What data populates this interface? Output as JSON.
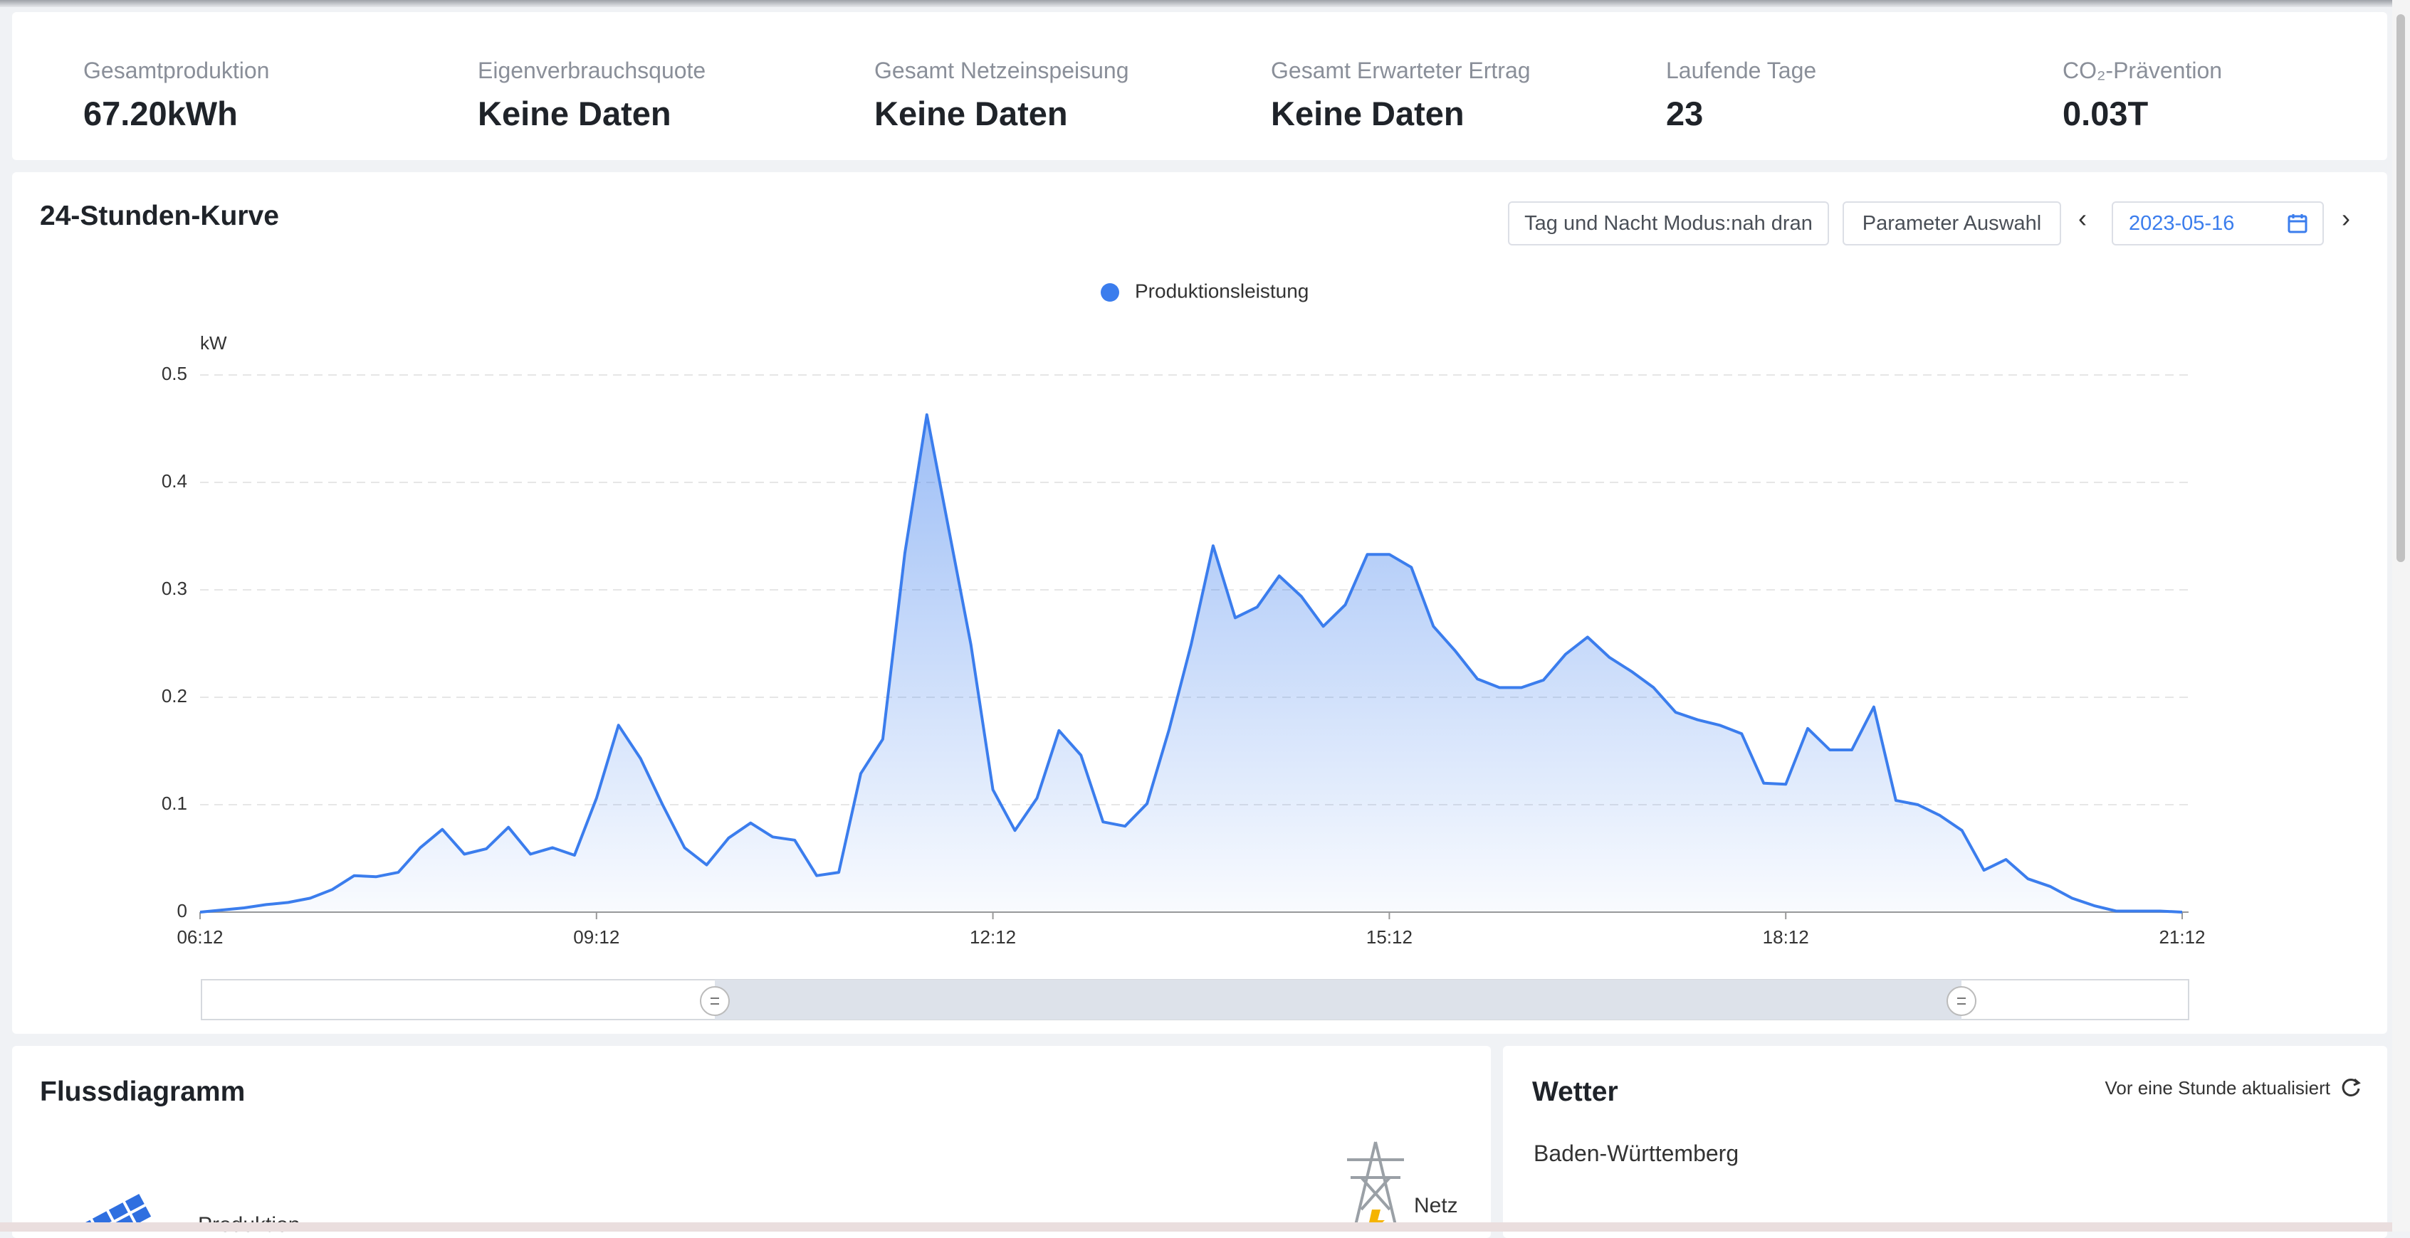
{
  "stats": [
    {
      "label": "Gesamtproduktion",
      "value": "67.20kWh"
    },
    {
      "label": "Eigenverbrauchsquote",
      "value": "Keine Daten"
    },
    {
      "label": "Gesamt Netzeinspeisung",
      "value": "Keine Daten"
    },
    {
      "label": "Gesamt Erwarteter Ertrag",
      "value": "Keine Daten"
    },
    {
      "label": "Laufende Tage",
      "value": "23"
    },
    {
      "label": "CO₂-Prävention",
      "value": "0.03T"
    }
  ],
  "chart_panel": {
    "title": "24-Stunden-Kurve",
    "buttons": [
      "Tag und Nacht Modus:nah dran",
      "Parameter Auswahl"
    ],
    "date": "2023-05-16"
  },
  "chart_data": {
    "type": "area",
    "y_label": "kW",
    "x": [
      "06:12",
      "06:22",
      "06:32",
      "06:42",
      "06:52",
      "07:02",
      "07:12",
      "07:22",
      "07:32",
      "07:42",
      "07:52",
      "08:02",
      "08:12",
      "08:22",
      "08:32",
      "08:42",
      "08:52",
      "09:02",
      "09:12",
      "09:22",
      "09:32",
      "09:42",
      "09:52",
      "10:02",
      "10:12",
      "10:22",
      "10:32",
      "10:42",
      "10:52",
      "11:02",
      "11:12",
      "11:22",
      "11:32",
      "11:42",
      "11:52",
      "12:02",
      "12:12",
      "12:22",
      "12:32",
      "12:42",
      "12:52",
      "13:02",
      "13:12",
      "13:22",
      "13:32",
      "13:42",
      "13:52",
      "14:02",
      "14:12",
      "14:22",
      "14:32",
      "14:42",
      "14:52",
      "15:02",
      "15:12",
      "15:22",
      "15:32",
      "15:42",
      "15:52",
      "16:02",
      "16:12",
      "16:22",
      "16:32",
      "16:42",
      "16:52",
      "17:02",
      "17:12",
      "17:22",
      "17:32",
      "17:42",
      "17:52",
      "18:02",
      "18:12",
      "18:22",
      "18:32",
      "18:42",
      "18:52",
      "19:02",
      "19:12",
      "19:22",
      "19:32",
      "19:42",
      "19:52",
      "20:02",
      "20:12",
      "20:22",
      "20:32",
      "20:42",
      "20:52",
      "21:02",
      "21:12"
    ],
    "series": [
      {
        "name": "Produktionsleistung",
        "color": "#3b7ded",
        "values": [
          0,
          0.002,
          0.004,
          0.007,
          0.009,
          0.013,
          0.021,
          0.034,
          0.033,
          0.037,
          0.06,
          0.077,
          0.054,
          0.059,
          0.079,
          0.054,
          0.06,
          0.053,
          0.106,
          0.174,
          0.143,
          0.1,
          0.06,
          0.044,
          0.069,
          0.083,
          0.07,
          0.067,
          0.034,
          0.037,
          0.129,
          0.161,
          0.334,
          0.463,
          0.356,
          0.249,
          0.114,
          0.076,
          0.106,
          0.169,
          0.146,
          0.084,
          0.08,
          0.101,
          0.17,
          0.249,
          0.341,
          0.274,
          0.284,
          0.313,
          0.294,
          0.266,
          0.286,
          0.333,
          0.333,
          0.321,
          0.266,
          0.243,
          0.217,
          0.209,
          0.209,
          0.216,
          0.24,
          0.256,
          0.237,
          0.224,
          0.209,
          0.186,
          0.179,
          0.174,
          0.166,
          0.12,
          0.119,
          0.171,
          0.151,
          0.151,
          0.191,
          0.104,
          0.1,
          0.09,
          0.076,
          0.039,
          0.049,
          0.031,
          0.024,
          0.013,
          0.006,
          0.001,
          0.001,
          0.001,
          0
        ]
      }
    ],
    "ylim": [
      0,
      0.5
    ],
    "yticks": [
      0,
      0.1,
      0.2,
      0.3,
      0.4,
      0.5
    ],
    "xticks": [
      "06:12",
      "09:12",
      "12:12",
      "15:12",
      "18:12",
      "21:12"
    ],
    "grid": true,
    "legend": "top"
  },
  "flow": {
    "title": "Flussdiagramm",
    "labels": [
      "Produktion",
      "Netz"
    ]
  },
  "weather": {
    "title": "Wetter",
    "updated": "Vor eine Stunde aktualisiert",
    "region": "Baden-Württemberg"
  }
}
